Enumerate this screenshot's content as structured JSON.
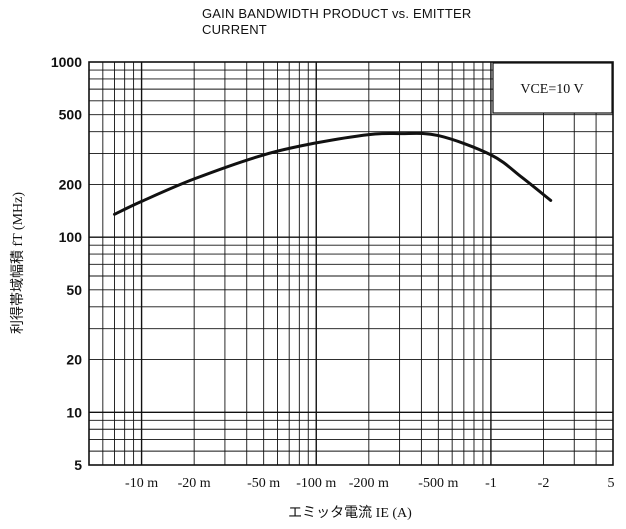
{
  "chart_data": {
    "type": "line",
    "title_lines": [
      "GAIN BANDWIDTH PRODUCT vs. EMITTER",
      "CURRENT"
    ],
    "ylabel": "利得帯域幅積  fT  (MHz)",
    "xlabel": "エミッタ電流  IE  (A)",
    "annotation": "VCE=10 V",
    "x_scale": "log",
    "y_scale": "log",
    "xlim": [
      0.005,
      5
    ],
    "ylim": [
      5,
      1000
    ],
    "x_tick_values": [
      0.01,
      0.02,
      0.05,
      0.1,
      0.2,
      0.5,
      1,
      2,
      5
    ],
    "x_tick_labels": [
      "-10 m",
      "-20 m",
      "-50 m",
      "-100 m",
      "-200 m",
      "-500 m",
      "-1",
      "-2",
      "5"
    ],
    "y_tick_values": [
      5,
      10,
      20,
      50,
      100,
      200,
      500,
      1000
    ],
    "y_tick_labels": [
      "5",
      "10",
      "20",
      "50",
      "100",
      "200",
      "500",
      "1000"
    ],
    "grid": true,
    "series": [
      {
        "x": [
          0.007,
          0.01,
          0.02,
          0.05,
          0.1,
          0.2,
          0.3,
          0.5,
          1.0,
          1.5,
          2.2
        ],
        "y": [
          135,
          160,
          215,
          295,
          345,
          385,
          390,
          380,
          295,
          220,
          162
        ]
      }
    ]
  }
}
